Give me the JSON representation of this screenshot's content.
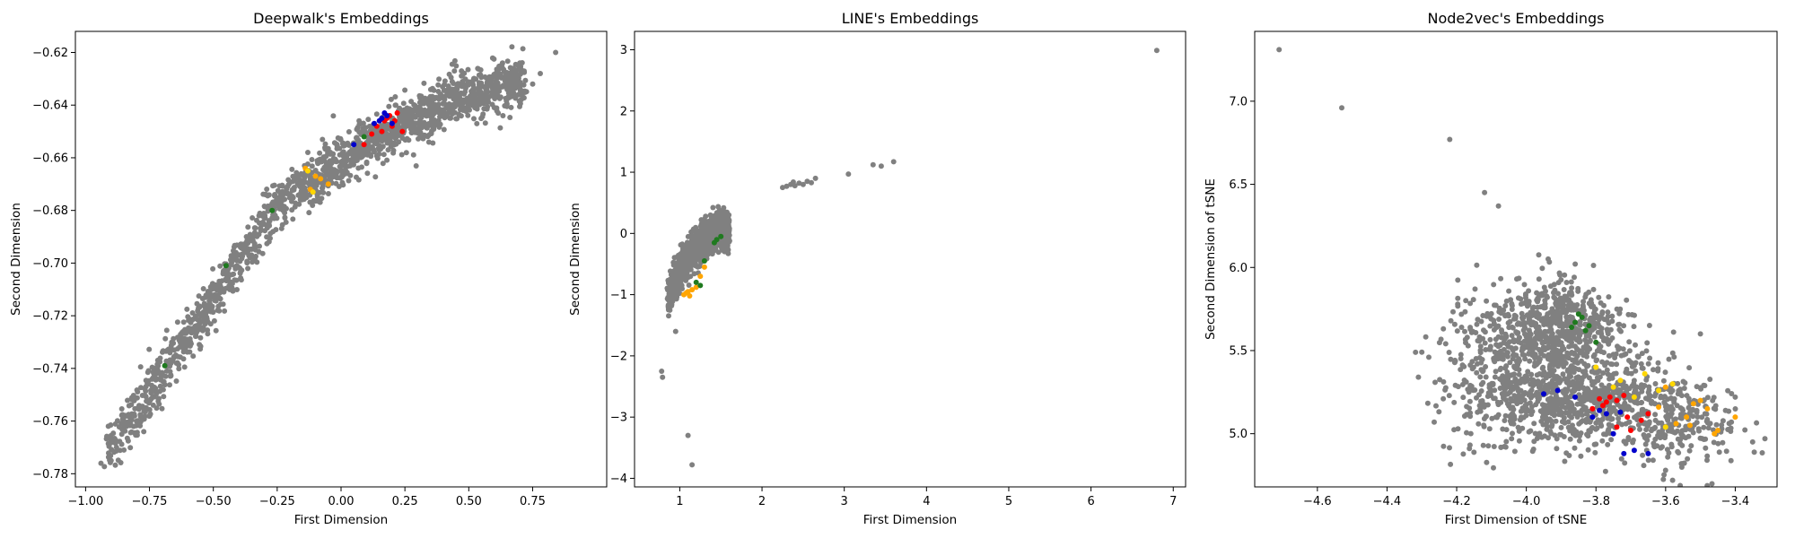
{
  "colors": {
    "background": "#808080",
    "red": "#ff0000",
    "blue": "#0000cc",
    "green": "#1f7a1f",
    "orange": "#ffa500",
    "yellow": "#ffd700"
  },
  "chart_data": [
    {
      "type": "scatter",
      "title": "Deepwalk's Embeddings",
      "xlabel": "First Dimension",
      "ylabel": "Second Dimension",
      "xlim": [
        -1.04,
        1.04
      ],
      "ylim": [
        -0.785,
        -0.612
      ],
      "xticks": [
        -1.0,
        -0.75,
        -0.5,
        -0.25,
        0.0,
        0.25,
        0.5,
        0.75
      ],
      "xtick_labels": [
        "−1.00",
        "−0.75",
        "−0.50",
        "−0.25",
        "0.00",
        "0.25",
        "0.50",
        "0.75"
      ],
      "yticks": [
        -0.78,
        -0.76,
        -0.74,
        -0.72,
        -0.7,
        -0.68,
        -0.66,
        -0.64,
        -0.62
      ],
      "ytick_labels": [
        "−0.78",
        "−0.76",
        "−0.74",
        "−0.72",
        "−0.70",
        "−0.68",
        "−0.66",
        "−0.64",
        "−0.62"
      ],
      "background_cloud": {
        "shape": "curve",
        "x_range": [
          -0.92,
          0.72
        ],
        "curve": [
          [
            -0.92,
            -0.772
          ],
          [
            -0.7,
            -0.742
          ],
          [
            -0.5,
            -0.713
          ],
          [
            -0.25,
            -0.678
          ],
          [
            0.0,
            -0.661
          ],
          [
            0.25,
            -0.647
          ],
          [
            0.5,
            -0.636
          ],
          [
            0.72,
            -0.63
          ]
        ],
        "spread": 0.004,
        "count": 1700
      },
      "outliers": [
        [
          -0.94,
          -0.776
        ],
        [
          -0.9,
          -0.775
        ],
        [
          -0.85,
          -0.771
        ],
        [
          0.75,
          -0.632
        ],
        [
          0.78,
          -0.628
        ],
        [
          0.84,
          -0.62
        ],
        [
          -0.73,
          -0.74
        ]
      ],
      "highlights": [
        {
          "color": "red",
          "points": [
            [
              0.14,
              -0.648
            ],
            [
              0.17,
              -0.646
            ],
            [
              0.19,
              -0.644
            ],
            [
              0.21,
              -0.646
            ],
            [
              0.16,
              -0.65
            ],
            [
              0.2,
              -0.648
            ],
            [
              0.12,
              -0.651
            ],
            [
              0.22,
              -0.643
            ],
            [
              0.18,
              -0.645
            ],
            [
              0.09,
              -0.655
            ],
            [
              0.24,
              -0.65
            ]
          ]
        },
        {
          "color": "blue",
          "points": [
            [
              0.16,
              -0.645
            ],
            [
              0.18,
              -0.644
            ],
            [
              0.15,
              -0.646
            ],
            [
              0.2,
              -0.647
            ],
            [
              0.17,
              -0.643
            ],
            [
              0.13,
              -0.647
            ],
            [
              0.05,
              -0.655
            ]
          ]
        },
        {
          "color": "orange",
          "points": [
            [
              -0.14,
              -0.664
            ],
            [
              -0.1,
              -0.667
            ],
            [
              -0.12,
              -0.672
            ],
            [
              -0.08,
              -0.668
            ],
            [
              -0.05,
              -0.67
            ]
          ]
        },
        {
          "color": "yellow",
          "points": [
            [
              -0.13,
              -0.665
            ],
            [
              -0.11,
              -0.673
            ]
          ]
        },
        {
          "color": "green",
          "points": [
            [
              -0.27,
              -0.68
            ],
            [
              -0.45,
              -0.701
            ],
            [
              -0.69,
              -0.739
            ],
            [
              0.09,
              -0.652
            ]
          ]
        }
      ]
    },
    {
      "type": "scatter",
      "title": "LINE's Embeddings",
      "xlabel": "First Dimension",
      "ylabel": "Second Dimension",
      "xlim": [
        0.45,
        7.15
      ],
      "ylim": [
        -4.14,
        3.3
      ],
      "xticks": [
        1,
        2,
        3,
        4,
        5,
        6,
        7
      ],
      "xtick_labels": [
        "1",
        "2",
        "3",
        "4",
        "5",
        "6",
        "7"
      ],
      "yticks": [
        -4,
        -3,
        -2,
        -1,
        0,
        1,
        2,
        3
      ],
      "ytick_labels": [
        "−4",
        "−3",
        "−2",
        "−1",
        "0",
        "1",
        "2",
        "3"
      ],
      "background_cloud": {
        "shape": "curve",
        "x_range": [
          0.85,
          1.6
        ],
        "curve": [
          [
            0.85,
            -1.1
          ],
          [
            0.95,
            -0.75
          ],
          [
            1.1,
            -0.4
          ],
          [
            1.3,
            -0.1
          ],
          [
            1.5,
            0.1
          ],
          [
            1.6,
            0.0
          ]
        ],
        "spread": 0.12,
        "count": 1500
      },
      "outliers": [
        [
          2.25,
          0.75
        ],
        [
          2.3,
          0.77
        ],
        [
          2.35,
          0.8
        ],
        [
          2.4,
          0.78
        ],
        [
          2.45,
          0.82
        ],
        [
          2.5,
          0.8
        ],
        [
          2.55,
          0.85
        ],
        [
          2.6,
          0.83
        ],
        [
          2.65,
          0.9
        ],
        [
          2.38,
          0.84
        ],
        [
          3.05,
          0.97
        ],
        [
          3.35,
          1.12
        ],
        [
          3.45,
          1.1
        ],
        [
          3.6,
          1.17
        ],
        [
          6.8,
          2.99
        ],
        [
          0.78,
          -2.25
        ],
        [
          0.79,
          -2.35
        ],
        [
          0.95,
          -1.6
        ],
        [
          1.1,
          -3.3
        ],
        [
          1.15,
          -3.78
        ],
        [
          1.55,
          -0.1
        ],
        [
          1.6,
          0.05
        ]
      ],
      "highlights": [
        {
          "color": "orange",
          "points": [
            [
              1.1,
              -0.95
            ],
            [
              1.15,
              -0.92
            ],
            [
              1.2,
              -0.88
            ],
            [
              1.05,
              -1.0
            ],
            [
              1.3,
              -0.55
            ],
            [
              1.25,
              -0.7
            ],
            [
              1.12,
              -1.02
            ],
            [
              1.08,
              -0.97
            ]
          ]
        },
        {
          "color": "green",
          "points": [
            [
              1.25,
              -0.85
            ],
            [
              1.45,
              -0.1
            ],
            [
              1.42,
              -0.15
            ],
            [
              1.5,
              -0.05
            ],
            [
              1.3,
              -0.45
            ],
            [
              1.2,
              -0.8
            ]
          ]
        }
      ]
    },
    {
      "type": "scatter",
      "title": "Node2vec's Embeddings",
      "xlabel": "First Dimension of tSNE",
      "ylabel": "Second Dimension of tSNE",
      "xlim": [
        -4.78,
        -3.28
      ],
      "ylim": [
        4.68,
        7.42
      ],
      "xticks": [
        -4.6,
        -4.4,
        -4.2,
        -4.0,
        -3.8,
        -3.6,
        -3.4
      ],
      "xtick_labels": [
        "−4.6",
        "−4.4",
        "−4.2",
        "−4.0",
        "−3.8",
        "−3.6",
        "−3.4"
      ],
      "yticks": [
        5.0,
        5.5,
        6.0,
        6.5,
        7.0
      ],
      "ytick_labels": [
        "5.0",
        "5.5",
        "6.0",
        "6.5",
        "7.0"
      ],
      "background_cloud": {
        "shape": "blob",
        "count": 1800
      },
      "outliers": [
        [
          -4.71,
          7.31
        ],
        [
          -4.53,
          6.96
        ],
        [
          -4.22,
          6.77
        ],
        [
          -4.12,
          6.45
        ],
        [
          -4.08,
          6.37
        ],
        [
          -4.3,
          5.49
        ],
        [
          -4.28,
          5.46
        ],
        [
          -4.31,
          5.34
        ],
        [
          -3.35,
          4.95
        ],
        [
          -3.4,
          5.22
        ],
        [
          -3.5,
          5.6
        ],
        [
          -3.58,
          4.72
        ],
        [
          -3.6,
          4.78
        ],
        [
          -3.55,
          4.82
        ]
      ],
      "highlights": [
        {
          "color": "red",
          "points": [
            [
              -3.76,
              5.22
            ],
            [
              -3.74,
              5.2
            ],
            [
              -3.77,
              5.19
            ],
            [
              -3.79,
              5.21
            ],
            [
              -3.72,
              5.23
            ],
            [
              -3.78,
              5.17
            ],
            [
              -3.71,
              5.1
            ],
            [
              -3.67,
              5.08
            ],
            [
              -3.74,
              5.04
            ],
            [
              -3.7,
              5.02
            ],
            [
              -3.65,
              5.12
            ],
            [
              -3.81,
              5.15
            ]
          ]
        },
        {
          "color": "blue",
          "points": [
            [
              -3.95,
              5.24
            ],
            [
              -3.91,
              5.26
            ],
            [
              -3.86,
              5.22
            ],
            [
              -3.79,
              5.14
            ],
            [
              -3.77,
              5.12
            ],
            [
              -3.75,
              5.0
            ],
            [
              -3.72,
              4.88
            ],
            [
              -3.69,
              4.9
            ],
            [
              -3.65,
              4.88
            ],
            [
              -3.81,
              5.1
            ],
            [
              -3.73,
              5.13
            ]
          ]
        },
        {
          "color": "green",
          "points": [
            [
              -3.86,
              5.67
            ],
            [
              -3.84,
              5.7
            ],
            [
              -3.82,
              5.65
            ],
            [
              -3.85,
              5.72
            ],
            [
              -3.8,
              5.55
            ],
            [
              -3.83,
              5.62
            ],
            [
              -3.87,
              5.64
            ]
          ]
        },
        {
          "color": "orange",
          "points": [
            [
              -3.52,
              5.18
            ],
            [
              -3.5,
              5.2
            ],
            [
              -3.48,
              5.15
            ],
            [
              -3.54,
              5.1
            ],
            [
              -3.45,
              5.02
            ],
            [
              -3.46,
              5.0
            ],
            [
              -3.4,
              5.1
            ],
            [
              -3.6,
              5.28
            ],
            [
              -3.57,
              5.06
            ],
            [
              -3.62,
              5.16
            ],
            [
              -3.53,
              5.05
            ]
          ]
        },
        {
          "color": "yellow",
          "points": [
            [
              -3.75,
              5.28
            ],
            [
              -3.73,
              5.32
            ],
            [
              -3.8,
              5.4
            ],
            [
              -3.62,
              5.26
            ],
            [
              -3.66,
              5.36
            ],
            [
              -3.58,
              5.3
            ],
            [
              -3.69,
              5.22
            ],
            [
              -3.6,
              5.04
            ]
          ]
        }
      ]
    }
  ]
}
